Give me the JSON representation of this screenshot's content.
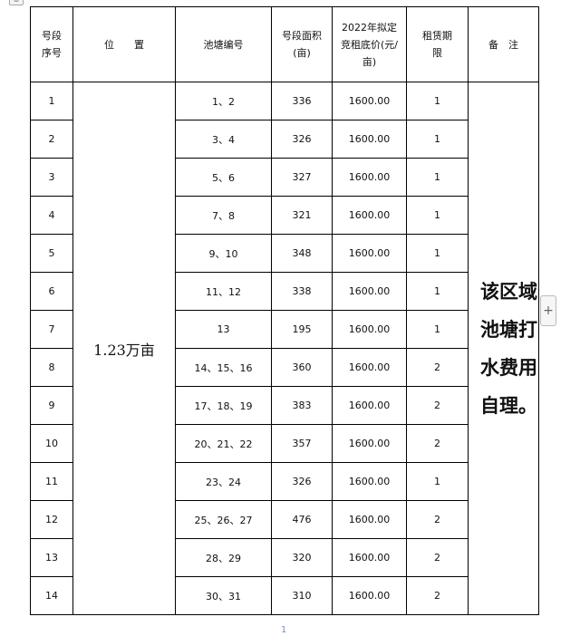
{
  "headers": {
    "seq": "号段序号",
    "location": "位　　置",
    "pond_no": "池塘编号",
    "area": "号段面积(亩)",
    "price": "2022年拟定竞租底价(元/亩)",
    "term": "租赁期限",
    "note": "备　注"
  },
  "location": "1.23万亩",
  "note": "该区域池塘打水费用自理。",
  "rows": [
    {
      "seq": "1",
      "ponds": "1、2",
      "area": "336",
      "price": "1600.00",
      "term": "1"
    },
    {
      "seq": "2",
      "ponds": "3、4",
      "area": "326",
      "price": "1600.00",
      "term": "1"
    },
    {
      "seq": "3",
      "ponds": "5、6",
      "area": "327",
      "price": "1600.00",
      "term": "1"
    },
    {
      "seq": "4",
      "ponds": "7、8",
      "area": "321",
      "price": "1600.00",
      "term": "1"
    },
    {
      "seq": "5",
      "ponds": "9、10",
      "area": "348",
      "price": "1600.00",
      "term": "1"
    },
    {
      "seq": "6",
      "ponds": "11、12",
      "area": "338",
      "price": "1600.00",
      "term": "1"
    },
    {
      "seq": "7",
      "ponds": "13",
      "area": "195",
      "price": "1600.00",
      "term": "1"
    },
    {
      "seq": "8",
      "ponds": "14、15、16",
      "area": "360",
      "price": "1600.00",
      "term": "2"
    },
    {
      "seq": "9",
      "ponds": "17、18、19",
      "area": "383",
      "price": "1600.00",
      "term": "2"
    },
    {
      "seq": "10",
      "ponds": "20、21、22",
      "area": "357",
      "price": "1600.00",
      "term": "2"
    },
    {
      "seq": "11",
      "ponds": "23、24",
      "area": "326",
      "price": "1600.00",
      "term": "1"
    },
    {
      "seq": "12",
      "ponds": "25、26、27",
      "area": "476",
      "price": "1600.00",
      "term": "2"
    },
    {
      "seq": "13",
      "ponds": "28、29",
      "area": "320",
      "price": "1600.00",
      "term": "2"
    },
    {
      "seq": "14",
      "ponds": "30、31",
      "area": "310",
      "price": "1600.00",
      "term": "2"
    }
  ],
  "page_number": "1",
  "icons": {
    "table_handle": "move-handle-icon",
    "add": "plus-icon"
  }
}
